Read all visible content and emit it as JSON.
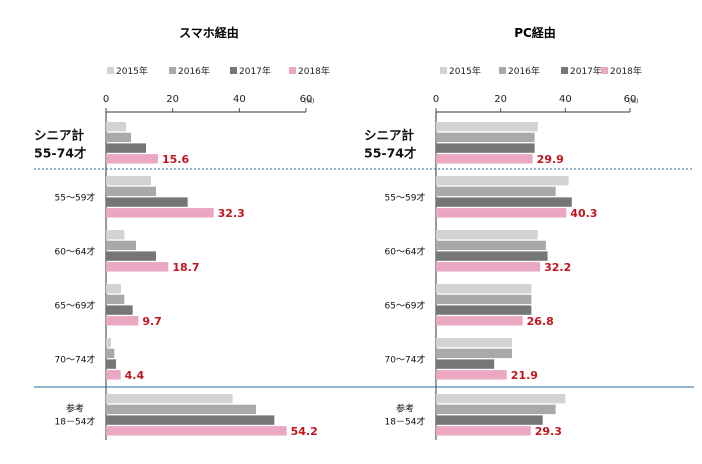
{
  "colors": {
    "2015年": "#d3d3d3",
    "2016年": "#a9a9a9",
    "2017年": "#767676",
    "2018年": "#e9a7c1",
    "value_label": "#c0161e",
    "separator": "#2c6e9b"
  },
  "chart_data": [
    {
      "type": "bar",
      "orientation": "horizontal",
      "title": "スマホ経由",
      "unit": "(%)",
      "xlim": [
        0,
        60
      ],
      "ticks": [
        0,
        20,
        40,
        60
      ],
      "legend": [
        "2015年",
        "2016年",
        "2017年",
        "2018年"
      ],
      "categories": [
        "シニア計\n55-74才",
        "55～59才",
        "60～64才",
        "65～69才",
        "70～74才",
        "参考\n18－54才"
      ],
      "series": [
        {
          "name": "2015年",
          "values": [
            6.0,
            13.5,
            5.5,
            4.5,
            1.5,
            38.0
          ]
        },
        {
          "name": "2016年",
          "values": [
            7.5,
            15.0,
            9.0,
            5.5,
            2.5,
            45.0
          ]
        },
        {
          "name": "2017年",
          "values": [
            12.0,
            24.5,
            15.0,
            8.0,
            3.0,
            50.5
          ]
        },
        {
          "name": "2018年",
          "values": [
            15.6,
            32.3,
            18.7,
            9.7,
            4.4,
            54.2
          ]
        }
      ],
      "data_labels": [
        "15.6",
        "32.3",
        "18.7",
        "9.7",
        "4.4",
        "54.2"
      ]
    },
    {
      "type": "bar",
      "orientation": "horizontal",
      "title": "PC経由",
      "unit": "(%)",
      "xlim": [
        0,
        60
      ],
      "ticks": [
        0,
        20,
        40,
        60
      ],
      "legend": [
        "2015年",
        "2016年",
        "2017年",
        "2018年"
      ],
      "categories": [
        "シニア計\n55-74才",
        "55～59才",
        "60～64才",
        "65～69才",
        "70～74才",
        "参考\n18－54才"
      ],
      "series": [
        {
          "name": "2015年",
          "values": [
            31.5,
            41.0,
            31.5,
            29.5,
            23.5,
            40.0
          ]
        },
        {
          "name": "2016年",
          "values": [
            30.5,
            37.0,
            34.0,
            29.5,
            23.5,
            37.0
          ]
        },
        {
          "name": "2017年",
          "values": [
            30.5,
            42.0,
            34.5,
            29.5,
            18.0,
            33.0
          ]
        },
        {
          "name": "2018年",
          "values": [
            29.9,
            40.3,
            32.2,
            26.8,
            21.9,
            29.3
          ]
        }
      ],
      "data_labels": [
        "29.9",
        "40.3",
        "32.2",
        "26.8",
        "21.9",
        "29.3"
      ]
    }
  ]
}
